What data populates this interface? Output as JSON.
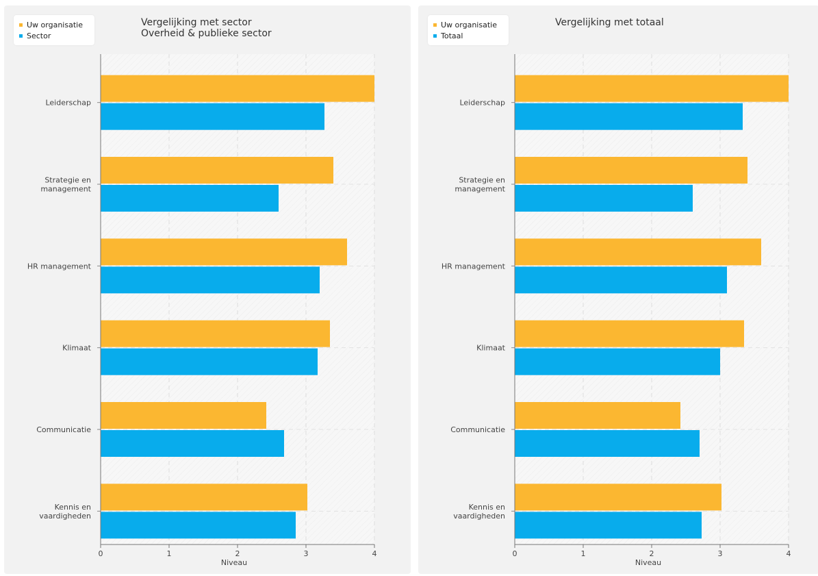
{
  "colors": {
    "org": "#fbb731",
    "compare": "#08acec"
  },
  "chart_data": [
    {
      "type": "bar",
      "orientation": "horizontal",
      "title": "Vergelijking met sector\nOverheid & publieke sector",
      "xlabel": "Niveau",
      "ylabel": "",
      "xlim": [
        0,
        4
      ],
      "x_ticks": [
        "0",
        "1",
        "2",
        "3",
        "4"
      ],
      "categories": [
        "Leiderschap",
        "Strategie en\nmanagement",
        "HR management",
        "Klimaat",
        "Communicatie",
        "Kennis en\nvaardigheden"
      ],
      "series": [
        {
          "name": "Uw organisatie",
          "values": [
            4.0,
            3.4,
            3.6,
            3.35,
            2.42,
            3.02
          ]
        },
        {
          "name": "Sector",
          "values": [
            3.27,
            2.6,
            3.2,
            3.17,
            2.68,
            2.85
          ]
        }
      ],
      "legend": "top-left",
      "grid": true
    },
    {
      "type": "bar",
      "orientation": "horizontal",
      "title": "Vergelijking met totaal",
      "xlabel": "Niveau",
      "ylabel": "",
      "xlim": [
        0,
        4
      ],
      "x_ticks": [
        "0",
        "1",
        "2",
        "3",
        "4"
      ],
      "categories": [
        "Leiderschap",
        "Strategie en\nmanagement",
        "HR management",
        "Klimaat",
        "Communicatie",
        "Kennis en\nvaardigheden"
      ],
      "series": [
        {
          "name": "Uw organisatie",
          "values": [
            4.0,
            3.4,
            3.6,
            3.35,
            2.42,
            3.02
          ]
        },
        {
          "name": "Totaal",
          "values": [
            3.33,
            2.6,
            3.1,
            3.0,
            2.7,
            2.73
          ]
        }
      ],
      "legend": "top-left",
      "grid": true
    }
  ]
}
